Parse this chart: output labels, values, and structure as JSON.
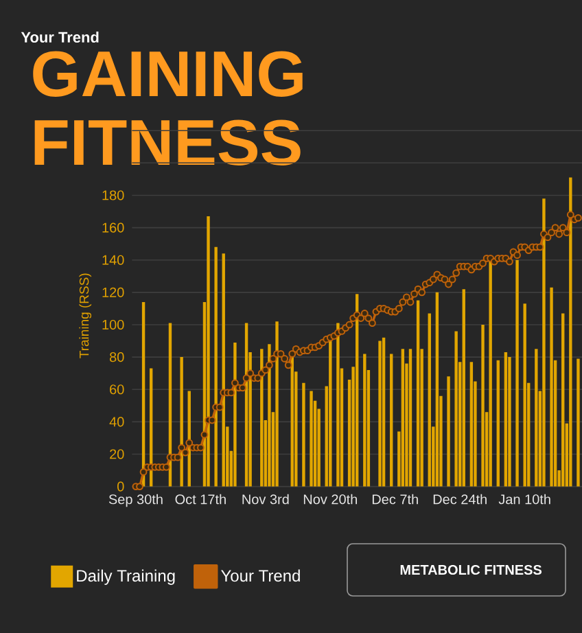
{
  "chart_data": {
    "type": "bar",
    "title": "GAINING FITNESS",
    "subtitle": "Your Trend",
    "ylabel": "Training (RSS)",
    "annotations": [
      "METABOLIC FITNESS"
    ],
    "categories": [
      "Sep 30th",
      null,
      null,
      null,
      null,
      null,
      null,
      null,
      null,
      null,
      null,
      null,
      null,
      null,
      null,
      null,
      null,
      "Oct 17th",
      null,
      null,
      null,
      null,
      null,
      null,
      null,
      null,
      null,
      null,
      null,
      null,
      null,
      null,
      null,
      null,
      "Nov 3rd",
      null,
      null,
      null,
      null,
      null,
      null,
      null,
      null,
      null,
      null,
      null,
      null,
      null,
      null,
      null,
      null,
      "Nov 20th",
      null,
      null,
      null,
      null,
      null,
      null,
      null,
      null,
      null,
      null,
      null,
      null,
      null,
      null,
      null,
      null,
      "Dec 7th",
      null,
      null,
      null,
      null,
      null,
      null,
      null,
      null,
      null,
      null,
      null,
      null,
      null,
      null,
      null,
      null,
      "Dec 24th",
      null,
      null,
      null,
      null,
      null,
      null,
      null,
      null,
      null,
      null,
      null,
      null,
      null,
      null,
      null,
      null,
      "Jan 10th",
      null,
      null,
      null,
      null,
      null,
      null,
      null,
      null,
      null,
      null,
      null,
      null,
      null,
      null
    ],
    "series": [
      {
        "name": "Daily Training",
        "color": "#e2a600",
        "values": [
          null,
          null,
          114,
          null,
          73,
          null,
          null,
          null,
          null,
          101,
          null,
          null,
          80,
          null,
          59,
          null,
          null,
          null,
          114,
          167,
          null,
          148,
          null,
          144,
          37,
          22,
          89,
          null,
          null,
          101,
          83,
          null,
          null,
          85,
          41,
          88,
          46,
          102,
          null,
          null,
          null,
          80,
          71,
          null,
          64,
          null,
          59,
          53,
          48,
          null,
          62,
          90,
          null,
          101,
          73,
          null,
          66,
          74,
          119,
          null,
          82,
          72,
          null,
          null,
          90,
          92,
          null,
          82,
          null,
          34,
          85,
          76,
          85,
          null,
          115,
          85,
          null,
          107,
          37,
          120,
          56,
          null,
          68,
          null,
          96,
          77,
          122,
          null,
          77,
          65,
          null,
          100,
          46,
          140,
          null,
          78,
          null,
          83,
          80,
          null,
          140,
          null,
          113,
          64,
          null,
          85,
          59,
          178,
          null,
          123,
          78,
          10,
          107,
          39,
          191,
          null,
          79
        ]
      },
      {
        "name": "Your Trend",
        "type": "line",
        "color": "#c0620a",
        "values": [
          0,
          0,
          9,
          12,
          12,
          12,
          12,
          12,
          12,
          18,
          18,
          18,
          24,
          21,
          27,
          24,
          24,
          24,
          32,
          41,
          41,
          49,
          49,
          58,
          58,
          58,
          64,
          61,
          61,
          67,
          70,
          67,
          67,
          70,
          72,
          75,
          79,
          82,
          82,
          79,
          75,
          82,
          85,
          83,
          84,
          84,
          86,
          86,
          87,
          89,
          91,
          92,
          93,
          95,
          96,
          98,
          100,
          104,
          106,
          104,
          107,
          104,
          101,
          108,
          110,
          110,
          109,
          108,
          108,
          110,
          114,
          117,
          114,
          119,
          122,
          120,
          125,
          126,
          128,
          131,
          129,
          128,
          125,
          128,
          132,
          136,
          136,
          136,
          134,
          136,
          136,
          138,
          141,
          141,
          139,
          141,
          141,
          141,
          139,
          145,
          143,
          148,
          148,
          146,
          148,
          148,
          148,
          156,
          154,
          157,
          160,
          156,
          160,
          157,
          168,
          165,
          166
        ]
      }
    ],
    "ylim": [
      0,
      220
    ],
    "yticks": [
      0,
      20,
      40,
      60,
      80,
      100,
      120,
      140,
      160,
      180,
      {
        "value": 200,
        "label": null
      },
      {
        "value": 220,
        "label": null
      }
    ],
    "grid": "y",
    "legend": "bottom left",
    "marker": "circle"
  }
}
